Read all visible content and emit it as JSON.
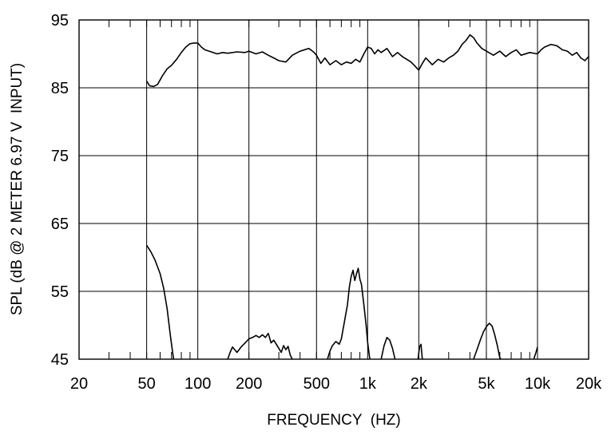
{
  "chart_data": {
    "type": "line",
    "title": "",
    "xlabel": "FREQUENCY  (HZ)",
    "ylabel": "SPL (dB @ 2 METER 6.97 V  INPUT)",
    "xscale": "log",
    "xlim": [
      20,
      20000
    ],
    "ylim": [
      45,
      95
    ],
    "grid": true,
    "x_ticks": [
      {
        "value": 20,
        "label": "20"
      },
      {
        "value": 50,
        "label": "50"
      },
      {
        "value": 100,
        "label": "100"
      },
      {
        "value": 200,
        "label": "200"
      },
      {
        "value": 500,
        "label": "500"
      },
      {
        "value": 1000,
        "label": "1k"
      },
      {
        "value": 2000,
        "label": "2k"
      },
      {
        "value": 5000,
        "label": "5k"
      },
      {
        "value": 10000,
        "label": "10k"
      },
      {
        "value": 20000,
        "label": "20k"
      }
    ],
    "y_ticks": [
      {
        "value": 45,
        "label": "45"
      },
      {
        "value": 55,
        "label": "55"
      },
      {
        "value": 65,
        "label": "65"
      },
      {
        "value": 75,
        "label": "75"
      },
      {
        "value": 85,
        "label": "85"
      },
      {
        "value": 95,
        "label": "95"
      }
    ],
    "series": [
      {
        "points": [
          [
            50,
            86
          ],
          [
            52,
            85.3
          ],
          [
            55,
            85.2
          ],
          [
            58,
            85.5
          ],
          [
            62,
            86.8
          ],
          [
            66,
            87.8
          ],
          [
            70,
            88.3
          ],
          [
            75,
            89.2
          ],
          [
            80,
            90.2
          ],
          [
            85,
            91.0
          ],
          [
            90,
            91.5
          ],
          [
            95,
            91.6
          ],
          [
            100,
            91.6
          ],
          [
            105,
            91.0
          ],
          [
            110,
            90.6
          ],
          [
            120,
            90.3
          ],
          [
            130,
            90.0
          ],
          [
            140,
            90.2
          ],
          [
            150,
            90.1
          ],
          [
            170,
            90.3
          ],
          [
            190,
            90.2
          ],
          [
            200,
            90.4
          ],
          [
            220,
            90.0
          ],
          [
            240,
            90.3
          ],
          [
            260,
            89.8
          ],
          [
            280,
            89.4
          ],
          [
            300,
            89.0
          ],
          [
            330,
            88.8
          ],
          [
            360,
            89.8
          ],
          [
            400,
            90.4
          ],
          [
            450,
            90.8
          ],
          [
            480,
            90.3
          ],
          [
            500,
            89.8
          ],
          [
            530,
            88.6
          ],
          [
            560,
            89.4
          ],
          [
            600,
            88.4
          ],
          [
            650,
            89.0
          ],
          [
            700,
            88.4
          ],
          [
            750,
            88.8
          ],
          [
            800,
            88.6
          ],
          [
            850,
            89.2
          ],
          [
            900,
            88.8
          ],
          [
            950,
            90.0
          ],
          [
            1000,
            91.0
          ],
          [
            1050,
            90.8
          ],
          [
            1100,
            90.0
          ],
          [
            1150,
            90.6
          ],
          [
            1200,
            90.2
          ],
          [
            1300,
            90.8
          ],
          [
            1400,
            89.6
          ],
          [
            1500,
            90.2
          ],
          [
            1600,
            89.6
          ],
          [
            1700,
            89.2
          ],
          [
            1800,
            88.8
          ],
          [
            1900,
            88.2
          ],
          [
            2000,
            87.6
          ],
          [
            2100,
            88.6
          ],
          [
            2200,
            89.4
          ],
          [
            2400,
            88.4
          ],
          [
            2600,
            89.2
          ],
          [
            2800,
            88.8
          ],
          [
            3000,
            89.4
          ],
          [
            3200,
            89.8
          ],
          [
            3400,
            90.4
          ],
          [
            3600,
            91.4
          ],
          [
            3800,
            92.0
          ],
          [
            4000,
            92.8
          ],
          [
            4200,
            92.4
          ],
          [
            4400,
            91.6
          ],
          [
            4700,
            90.8
          ],
          [
            5000,
            90.4
          ],
          [
            5500,
            89.8
          ],
          [
            6000,
            90.4
          ],
          [
            6500,
            89.6
          ],
          [
            7000,
            90.2
          ],
          [
            7500,
            90.6
          ],
          [
            8000,
            89.8
          ],
          [
            9000,
            90.2
          ],
          [
            10000,
            90.0
          ],
          [
            10500,
            90.6
          ],
          [
            11000,
            91.0
          ],
          [
            12000,
            91.4
          ],
          [
            13000,
            91.2
          ],
          [
            14000,
            90.6
          ],
          [
            15000,
            90.4
          ],
          [
            16000,
            89.8
          ],
          [
            17000,
            90.2
          ],
          [
            18000,
            89.4
          ],
          [
            19000,
            89.0
          ],
          [
            20000,
            89.6
          ]
        ]
      },
      {
        "points": [
          [
            50,
            61.8
          ],
          [
            53,
            60.8
          ],
          [
            56,
            59.6
          ],
          [
            60,
            57.6
          ],
          [
            63,
            55.4
          ],
          [
            66,
            52.4
          ],
          [
            69,
            48.4
          ],
          [
            72,
            45.0
          ]
        ]
      },
      {
        "points": [
          [
            150,
            45.0
          ],
          [
            155,
            46.0
          ],
          [
            160,
            46.8
          ],
          [
            165,
            46.4
          ],
          [
            170,
            46.0
          ],
          [
            175,
            46.4
          ],
          [
            180,
            46.8
          ],
          [
            190,
            47.4
          ],
          [
            200,
            48.0
          ],
          [
            210,
            48.2
          ],
          [
            220,
            48.5
          ],
          [
            230,
            48.2
          ],
          [
            240,
            48.6
          ],
          [
            250,
            48.2
          ],
          [
            260,
            48.8
          ],
          [
            270,
            47.4
          ],
          [
            280,
            47.8
          ],
          [
            290,
            47.2
          ],
          [
            300,
            46.6
          ],
          [
            310,
            46.0
          ],
          [
            320,
            47.0
          ],
          [
            330,
            46.4
          ],
          [
            340,
            46.9
          ],
          [
            350,
            45.6
          ],
          [
            360,
            45.0
          ]
        ]
      },
      {
        "points": [
          [
            580,
            45.0
          ],
          [
            600,
            46.2
          ],
          [
            620,
            47.0
          ],
          [
            650,
            47.6
          ],
          [
            680,
            47.2
          ],
          [
            700,
            48.0
          ],
          [
            730,
            50.5
          ],
          [
            760,
            53.0
          ],
          [
            780,
            55.6
          ],
          [
            800,
            57.2
          ],
          [
            820,
            58.1
          ],
          [
            840,
            56.6
          ],
          [
            860,
            57.6
          ],
          [
            880,
            58.4
          ],
          [
            900,
            56.8
          ],
          [
            920,
            56.0
          ],
          [
            950,
            53.0
          ],
          [
            980,
            50.0
          ],
          [
            1000,
            47.5
          ],
          [
            1030,
            45.0
          ]
        ]
      },
      {
        "points": [
          [
            1200,
            45.0
          ],
          [
            1250,
            47.0
          ],
          [
            1300,
            48.2
          ],
          [
            1350,
            47.8
          ],
          [
            1400,
            46.6
          ],
          [
            1450,
            45.0
          ]
        ]
      },
      {
        "points": [
          [
            1980,
            45.0
          ],
          [
            2020,
            46.8
          ],
          [
            2060,
            47.2
          ],
          [
            2100,
            45.0
          ]
        ]
      },
      {
        "points": [
          [
            4200,
            45.0
          ],
          [
            4400,
            46.4
          ],
          [
            4600,
            47.8
          ],
          [
            4800,
            49.0
          ],
          [
            5000,
            49.8
          ],
          [
            5200,
            50.3
          ],
          [
            5400,
            49.9
          ],
          [
            5600,
            48.6
          ],
          [
            5800,
            47.0
          ],
          [
            6000,
            45.2
          ],
          [
            6100,
            45.0
          ]
        ]
      },
      {
        "points": [
          [
            9500,
            45.0
          ],
          [
            9800,
            46.0
          ],
          [
            10000,
            46.8
          ]
        ]
      }
    ]
  }
}
